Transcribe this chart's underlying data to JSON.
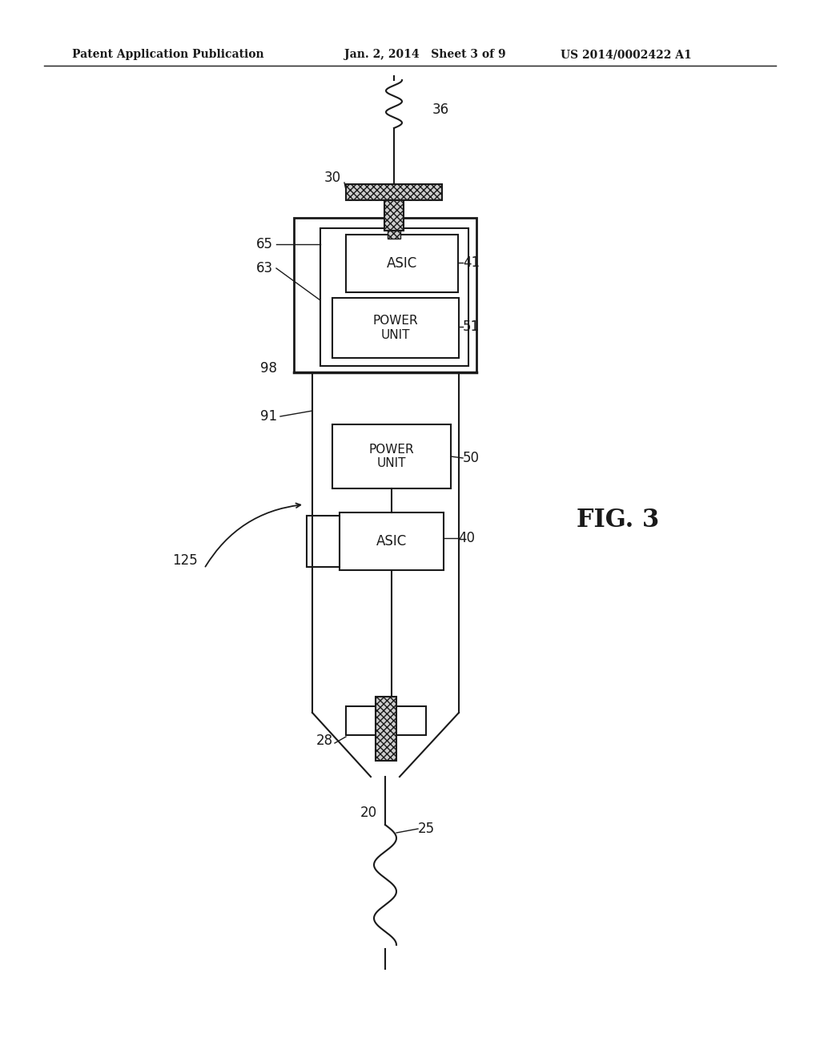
{
  "bg_color": "#ffffff",
  "line_color": "#1a1a1a",
  "header_left": "Patent Application Publication",
  "header_mid": "Jan. 2, 2014   Sheet 3 of 9",
  "header_right": "US 2014/0002422 A1",
  "fig_label": "FIG. 3"
}
